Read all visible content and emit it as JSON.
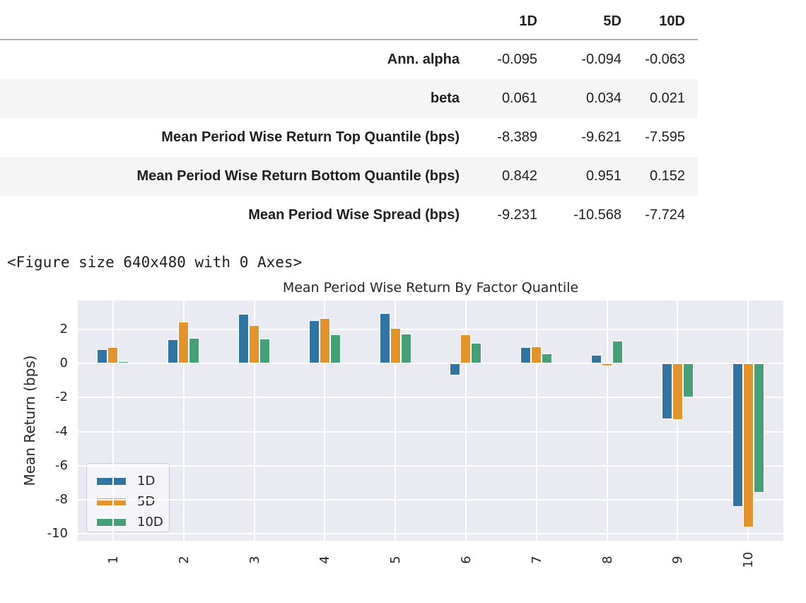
{
  "table": {
    "columns": [
      "1D",
      "5D",
      "10D"
    ],
    "rows": [
      {
        "label": "Ann. alpha",
        "values": [
          "-0.095",
          "-0.094",
          "-0.063"
        ]
      },
      {
        "label": "beta",
        "values": [
          "0.061",
          "0.034",
          "0.021"
        ]
      },
      {
        "label": "Mean Period Wise Return Top Quantile (bps)",
        "values": [
          "-8.389",
          "-9.621",
          "-7.595"
        ]
      },
      {
        "label": "Mean Period Wise Return Bottom Quantile (bps)",
        "values": [
          "0.842",
          "0.951",
          "0.152"
        ]
      },
      {
        "label": "Mean Period Wise Spread (bps)",
        "values": [
          "-9.231",
          "-10.568",
          "-7.724"
        ]
      }
    ]
  },
  "figure_repr": "<Figure size 640x480 with 0 Axes>",
  "chart_data": {
    "type": "bar",
    "title": "Mean Period Wise Return By Factor Quantile",
    "xlabel": "",
    "ylabel": "Mean Return (bps)",
    "categories": [
      "1",
      "2",
      "3",
      "4",
      "5",
      "6",
      "7",
      "8",
      "9",
      "10"
    ],
    "series": [
      {
        "name": "1D",
        "color": "#3274a1",
        "values": [
          0.842,
          1.4,
          2.9,
          2.55,
          2.95,
          -0.7,
          0.95,
          0.5,
          -3.25,
          -8.389
        ]
      },
      {
        "name": "5D",
        "color": "#e1932d",
        "values": [
          0.951,
          2.45,
          2.25,
          2.65,
          2.1,
          1.7,
          1.0,
          -0.15,
          -3.3,
          -9.621
        ]
      },
      {
        "name": "10D",
        "color": "#45a077",
        "values": [
          0.152,
          1.5,
          1.45,
          1.7,
          1.75,
          1.2,
          0.6,
          1.35,
          -2.0,
          -7.595
        ]
      }
    ],
    "ylim": [
      -10.4,
      3.7
    ],
    "yticks": [
      2,
      0,
      -2,
      -4,
      -6,
      -8,
      -10
    ],
    "grid": true,
    "plot_background": "#eaeaf2",
    "legend_position": "lower left"
  }
}
